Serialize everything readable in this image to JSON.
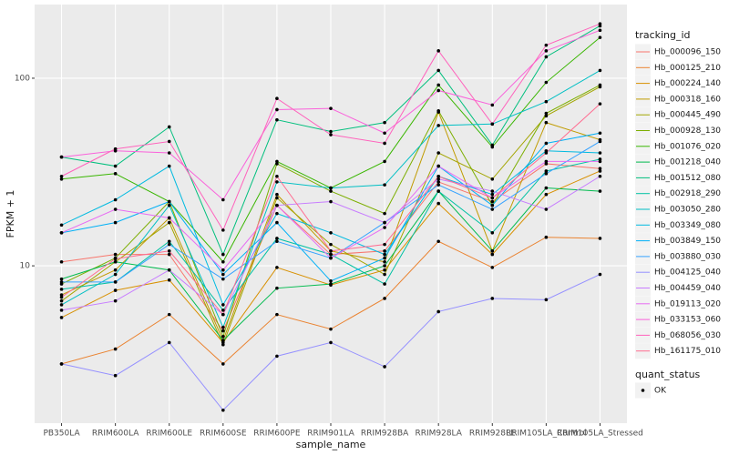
{
  "chart_data": {
    "type": "line",
    "x_label": "sample_name",
    "y_label": "FPKM + 1",
    "categories": [
      "PB350LA",
      "RRIM600LA",
      "RRIM600LE",
      "RRIM600SE",
      "RRIM600PE",
      "RRIM901LA",
      "RRIM928BA",
      "RRIM928LA",
      "RRIM928LE",
      "RRIM105LA_Control",
      "RRIM105LA_Stressed"
    ],
    "log_scale": true,
    "grid": true,
    "legend_position": "right",
    "legend_title": "tracking_id",
    "ylim": [
      1.45,
      247
    ],
    "yticks": [
      10,
      100
    ],
    "point_color": "#000000",
    "shape_legend": {
      "title": "quant_status",
      "labels": [
        "OK"
      ]
    },
    "series": [
      {
        "name": "Hb_000096_150",
        "color": "#F8766D",
        "values": [
          10.5,
          11.5,
          11.5,
          4.5,
          21,
          11.5,
          12,
          28,
          22,
          35,
          33
        ]
      },
      {
        "name": "Hb_000125_210",
        "color": "#EA8331",
        "values": [
          3.0,
          3.6,
          5.5,
          3.0,
          5.5,
          4.6,
          6.7,
          13.5,
          9.8,
          14.2,
          14
        ]
      },
      {
        "name": "Hb_000224_140",
        "color": "#D89000",
        "values": [
          5.3,
          7.4,
          8.4,
          3.9,
          9.8,
          7.9,
          9.5,
          21.5,
          11.5,
          24,
          32
        ]
      },
      {
        "name": "Hb_000318_160",
        "color": "#C09B00",
        "values": [
          7.0,
          9.5,
          18,
          4.0,
          24,
          12,
          10.5,
          66,
          12,
          58,
          47
        ]
      },
      {
        "name": "Hb_000445_490",
        "color": "#A3A500",
        "values": [
          6.5,
          10.5,
          17,
          3.8,
          23,
          13,
          9.0,
          40,
          29,
          63,
          90
        ]
      },
      {
        "name": "Hb_000928_130",
        "color": "#7CAE00",
        "values": [
          8.0,
          11,
          22,
          4.2,
          35,
          25,
          19,
          67,
          21,
          65,
          92
        ]
      },
      {
        "name": "Hb_001076_020",
        "color": "#39B600",
        "values": [
          29,
          31,
          22,
          10.5,
          36,
          26,
          36,
          92,
          43,
          95,
          165
        ]
      },
      {
        "name": "Hb_001218_040",
        "color": "#00BB4E",
        "values": [
          8.5,
          10.5,
          9.5,
          4.0,
          7.6,
          8.0,
          10,
          25,
          12,
          26,
          25
        ]
      },
      {
        "name": "Hb_001512_080",
        "color": "#00BF7D",
        "values": [
          38,
          34,
          55,
          11.5,
          60,
          52,
          58,
          110,
          44,
          130,
          190
        ]
      },
      {
        "name": "Hb_002918_290",
        "color": "#00C1A3",
        "values": [
          7.5,
          8.2,
          13.5,
          5.8,
          14,
          11.5,
          8,
          25,
          15,
          32,
          37
        ]
      },
      {
        "name": "Hb_003050_280",
        "color": "#00BFC4",
        "values": [
          6.2,
          9.0,
          21,
          4.7,
          28,
          26,
          27,
          56,
          57,
          75,
          110
        ]
      },
      {
        "name": "Hb_003349_080",
        "color": "#00BAE0",
        "values": [
          16.5,
          22.5,
          34,
          6.2,
          19,
          15,
          11.5,
          30,
          24,
          41,
          40
        ]
      },
      {
        "name": "Hb_003849_150",
        "color": "#00B0F6",
        "values": [
          15,
          17,
          22,
          9,
          17,
          8.3,
          11,
          34,
          21,
          45,
          51
        ]
      },
      {
        "name": "Hb_003880_030",
        "color": "#35A2FF",
        "values": [
          8.2,
          8.2,
          13,
          8.5,
          13.5,
          11,
          17,
          27,
          20,
          31,
          46
        ]
      },
      {
        "name": "Hb_004125_040",
        "color": "#9590FF",
        "values": [
          3.0,
          2.6,
          3.9,
          1.7,
          3.3,
          3.9,
          2.9,
          5.7,
          6.7,
          6.6,
          9
        ]
      },
      {
        "name": "Hb_004459_040",
        "color": "#C77CFF",
        "values": [
          5.8,
          6.5,
          9.5,
          5.5,
          21,
          22,
          17,
          29,
          25,
          20,
          30
        ]
      },
      {
        "name": "Hb_019113_020",
        "color": "#E76BF3",
        "values": [
          15,
          20,
          18,
          9.5,
          21,
          11,
          16,
          34,
          23,
          36,
          36
        ]
      },
      {
        "name": "Hb_033153_060",
        "color": "#FA62DB",
        "values": [
          38,
          41,
          40,
          22.5,
          68,
          69,
          51,
          86,
          72,
          140,
          180
        ]
      },
      {
        "name": "Hb_068056_030",
        "color": "#FF62BC",
        "values": [
          30,
          42,
          46,
          15.5,
          78,
          50,
          45,
          140,
          57,
          150,
          195
        ]
      },
      {
        "name": "Hb_161175_010",
        "color": "#FF6C91",
        "values": [
          6.8,
          10.9,
          12,
          5.5,
          30,
          12,
          13,
          30,
          23,
          40,
          73
        ]
      }
    ]
  }
}
